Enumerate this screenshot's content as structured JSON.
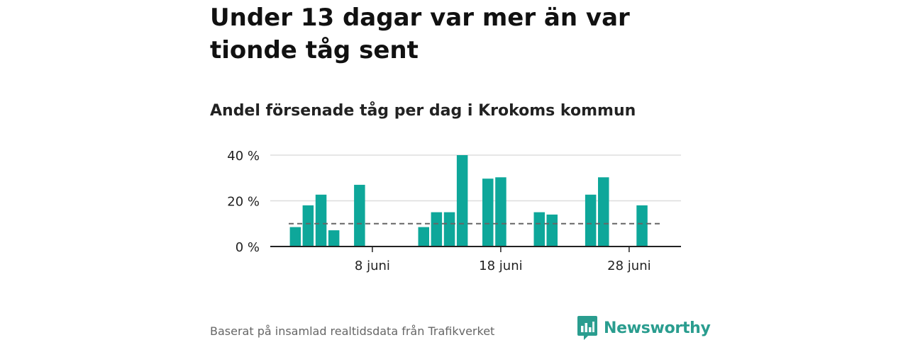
{
  "headline": "Under 13 dagar var mer än var tionde tåg sent",
  "subtitle": "Andel försenade tåg per dag i Krokoms kommun",
  "source": "Baserat på insamlad realtidsdata från Trafikverket",
  "brand": {
    "name": "Newsworthy",
    "logo_icon": "bar-chart-speech-bubble-icon",
    "color": "#2a9d8f"
  },
  "colors": {
    "bar": "#0ea79a",
    "grid": "#dddddd",
    "reference_line": "#666666",
    "axis": "#222222"
  },
  "chart_data": {
    "type": "bar",
    "x_unit": "day of June",
    "x": [
      1,
      2,
      3,
      4,
      5,
      6,
      7,
      8,
      9,
      10,
      11,
      12,
      13,
      14,
      15,
      16,
      17,
      18,
      19,
      20,
      21,
      22,
      23,
      24,
      25,
      26,
      27,
      28,
      29,
      30
    ],
    "values": [
      null,
      8.5,
      18,
      22.7,
      7.1,
      null,
      27,
      null,
      null,
      null,
      null,
      8.5,
      15,
      15,
      40,
      null,
      29.7,
      30.3,
      null,
      null,
      15,
      14,
      null,
      null,
      22.7,
      30.3,
      null,
      null,
      18,
      null
    ],
    "ylim": [
      0,
      40
    ],
    "yticks": [
      0,
      20,
      40
    ],
    "ytick_labels": [
      "0 %",
      "20 %",
      "40 %"
    ],
    "xticks": [
      8,
      18,
      28
    ],
    "xtick_labels": [
      "8 juni",
      "18 juni",
      "28 juni"
    ],
    "reference_line": {
      "value": 10,
      "style": "dashed"
    },
    "xlabel": "",
    "ylabel": "",
    "grid": "horizontal",
    "legend": "none"
  }
}
